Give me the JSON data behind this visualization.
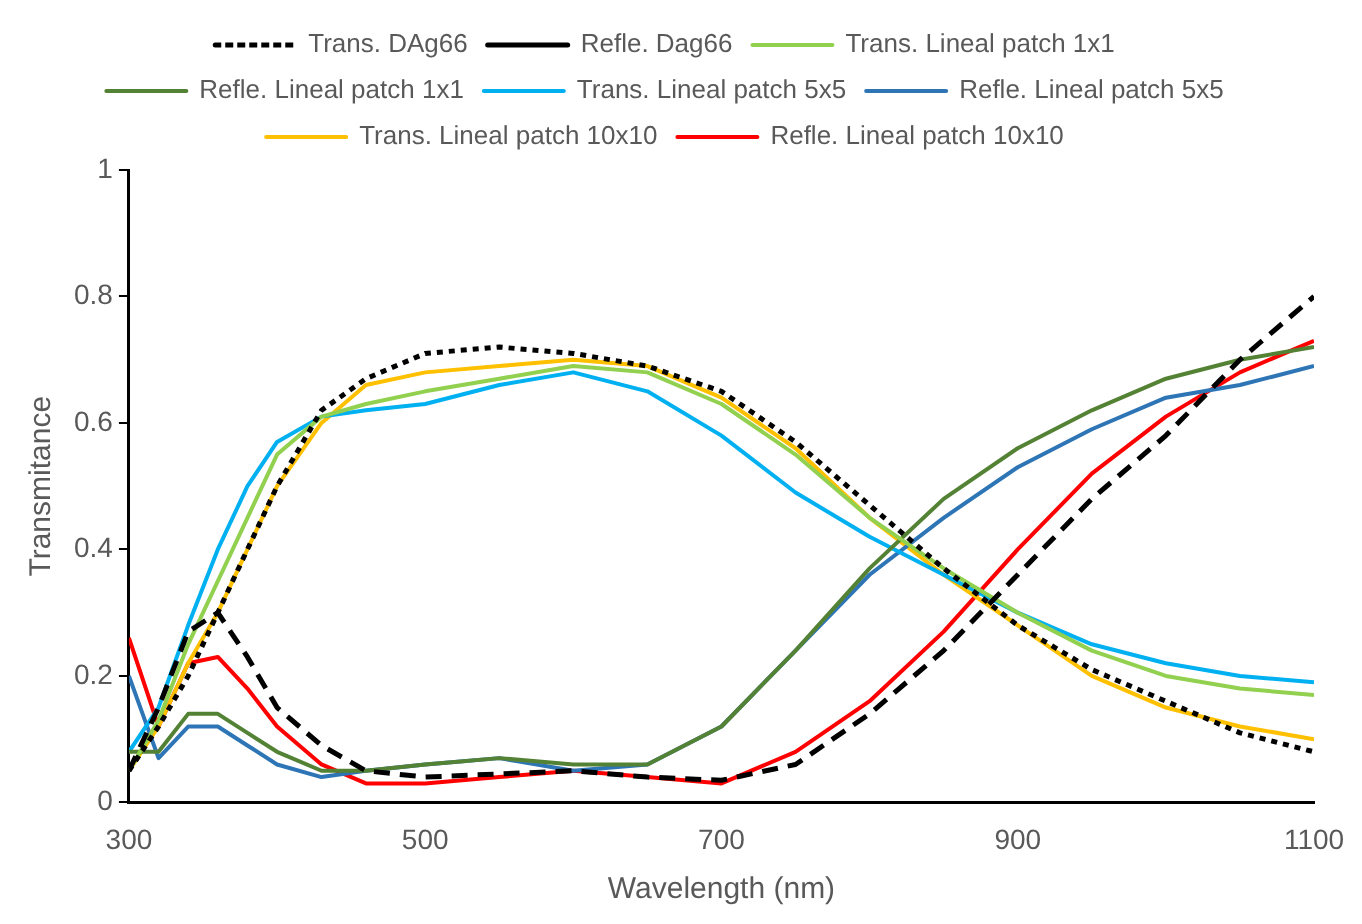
{
  "chart_data": {
    "type": "line",
    "xlabel": "Wavelength (nm)",
    "ylabel": "Transmitance",
    "xlim": [
      300,
      1100
    ],
    "xticks": [
      300,
      500,
      700,
      900,
      1100
    ],
    "ylim": [
      0,
      1
    ],
    "yticks": [
      0,
      0.2,
      0.4,
      0.6,
      0.8,
      1
    ],
    "grid": false,
    "legend": "top",
    "marker": "none",
    "x": [
      300,
      320,
      340,
      360,
      380,
      400,
      430,
      460,
      500,
      550,
      600,
      650,
      700,
      750,
      800,
      850,
      900,
      950,
      1000,
      1050,
      1100
    ],
    "series": [
      {
        "name": "Trans. DAg66",
        "color": "#000000",
        "line_style": "dotted",
        "values": [
          0.05,
          0.12,
          0.2,
          0.3,
          0.4,
          0.5,
          0.62,
          0.67,
          0.71,
          0.72,
          0.71,
          0.69,
          0.65,
          0.57,
          0.47,
          0.37,
          0.28,
          0.21,
          0.16,
          0.11,
          0.08
        ]
      },
      {
        "name": "Refle. Dag66",
        "color": "#000000",
        "line_style": "dashed",
        "values": [
          0.05,
          0.15,
          0.27,
          0.3,
          0.23,
          0.15,
          0.09,
          0.05,
          0.04,
          0.045,
          0.05,
          0.04,
          0.035,
          0.06,
          0.14,
          0.24,
          0.36,
          0.48,
          0.58,
          0.7,
          0.8
        ]
      },
      {
        "name": "Trans. Lineal patch 1x1",
        "color": "#92d050",
        "line_style": "solid",
        "values": [
          0.05,
          0.13,
          0.25,
          0.35,
          0.45,
          0.55,
          0.61,
          0.63,
          0.65,
          0.67,
          0.69,
          0.68,
          0.63,
          0.55,
          0.45,
          0.37,
          0.3,
          0.24,
          0.2,
          0.18,
          0.17
        ]
      },
      {
        "name": "Refle. Lineal patch 1x1",
        "color": "#548235",
        "line_style": "solid",
        "values": [
          0.08,
          0.08,
          0.14,
          0.14,
          0.11,
          0.08,
          0.05,
          0.05,
          0.06,
          0.07,
          0.06,
          0.06,
          0.12,
          0.24,
          0.37,
          0.48,
          0.56,
          0.62,
          0.67,
          0.7,
          0.72
        ]
      },
      {
        "name": "Trans. Lineal patch 5x5",
        "color": "#00b0f0",
        "line_style": "solid",
        "values": [
          0.08,
          0.15,
          0.28,
          0.4,
          0.5,
          0.57,
          0.61,
          0.62,
          0.63,
          0.66,
          0.68,
          0.65,
          0.58,
          0.49,
          0.42,
          0.36,
          0.3,
          0.25,
          0.22,
          0.2,
          0.19
        ]
      },
      {
        "name": "Refle. Lineal patch 5x5",
        "color": "#2e75b6",
        "line_style": "solid",
        "values": [
          0.2,
          0.07,
          0.12,
          0.12,
          0.09,
          0.06,
          0.04,
          0.05,
          0.06,
          0.07,
          0.05,
          0.06,
          0.12,
          0.24,
          0.36,
          0.45,
          0.53,
          0.59,
          0.64,
          0.66,
          0.69
        ]
      },
      {
        "name": "Trans. Lineal patch 10x10",
        "color": "#ffc000",
        "line_style": "solid",
        "values": [
          0.05,
          0.12,
          0.22,
          0.3,
          0.4,
          0.5,
          0.6,
          0.66,
          0.68,
          0.69,
          0.7,
          0.69,
          0.64,
          0.56,
          0.45,
          0.36,
          0.28,
          0.2,
          0.15,
          0.12,
          0.1
        ]
      },
      {
        "name": "Refle. Lineal patch 10x10",
        "color": "#ff0000",
        "line_style": "solid",
        "values": [
          0.26,
          0.12,
          0.22,
          0.23,
          0.18,
          0.12,
          0.06,
          0.03,
          0.03,
          0.04,
          0.05,
          0.04,
          0.03,
          0.08,
          0.16,
          0.27,
          0.4,
          0.52,
          0.61,
          0.68,
          0.73
        ]
      }
    ]
  }
}
